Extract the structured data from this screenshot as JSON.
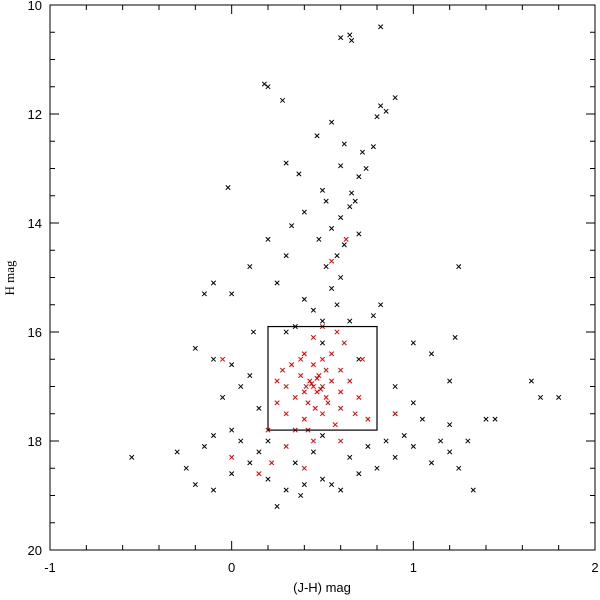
{
  "chart_data": {
    "type": "scatter",
    "xlabel": "(J-H) mag",
    "ylabel": "H mag",
    "xlim": [
      -1,
      2
    ],
    "ylim": [
      20,
      10
    ],
    "xticks": [
      -1,
      0,
      1,
      2
    ],
    "yticks": [
      10,
      12,
      14,
      16,
      18,
      20
    ],
    "xminorticks": [
      -0.8,
      -0.6,
      -0.4,
      -0.2,
      0.2,
      0.4,
      0.6,
      0.8,
      1.2,
      1.4,
      1.6,
      1.8
    ],
    "yminorticks": [
      10.5,
      11,
      11.5,
      12.5,
      13,
      13.5,
      14.5,
      15,
      15.5,
      16.5,
      17,
      17.5,
      18.5,
      19,
      19.5
    ],
    "box": {
      "x": [
        0.2,
        0.8
      ],
      "y": [
        15.9,
        17.8
      ],
      "color": "#000000"
    },
    "series": [
      {
        "color": "#000000",
        "x": [
          0.6,
          0.65,
          0.66,
          0.82,
          0.18,
          0.2,
          0.28,
          0.9,
          0.82,
          0.85,
          0.8,
          0.55,
          0.47,
          0.62,
          0.78,
          0.72,
          0.3,
          0.37,
          0.6,
          0.74,
          0.7,
          -0.02,
          0.5,
          0.66,
          0.52,
          0.68,
          0.4,
          0.6,
          0.65,
          0.55,
          0.7,
          0.33,
          0.48,
          0.62,
          0.58,
          0.52,
          0.6,
          0.55,
          0.2,
          0.3,
          0.1,
          0.25,
          0.4,
          0.45,
          0.5,
          0.58,
          0.35,
          0.65,
          0.0,
          -0.1,
          -0.15,
          0.82,
          0.78,
          1.0,
          1.1,
          1.23,
          1.2,
          1.65,
          1.7,
          1.8,
          1.4,
          1.45,
          1.2,
          1.0,
          0.9,
          -0.2,
          -0.1,
          0.0,
          0.1,
          0.05,
          -0.05,
          0.15,
          -0.55,
          -0.3,
          -0.25,
          -0.2,
          -0.1,
          0.0,
          0.1,
          0.2,
          0.3,
          0.4,
          0.5,
          0.6,
          0.7,
          0.8,
          0.9,
          1.0,
          1.1,
          1.2,
          1.3,
          1.33,
          0.25,
          0.38,
          0.55,
          -0.15,
          0.05,
          0.15,
          0.35,
          0.45,
          0.65,
          0.75,
          0.85,
          0.95,
          0.0,
          -0.1,
          0.2,
          0.5,
          1.05,
          1.15,
          1.25,
          0.3,
          0.5,
          0.7,
          0.9,
          0.12,
          1.25
        ],
        "values": [
          10.6,
          10.55,
          10.65,
          10.4,
          11.45,
          11.5,
          11.75,
          11.7,
          11.85,
          11.95,
          12.05,
          12.15,
          12.4,
          12.55,
          12.6,
          12.7,
          12.9,
          13.1,
          12.95,
          13.0,
          13.15,
          13.35,
          13.4,
          13.45,
          13.6,
          13.6,
          13.8,
          13.9,
          13.7,
          14.1,
          14.2,
          14.05,
          14.3,
          14.4,
          14.6,
          14.8,
          15.0,
          15.2,
          14.3,
          14.6,
          14.8,
          15.1,
          15.4,
          15.6,
          15.8,
          15.5,
          15.9,
          15.8,
          15.3,
          15.1,
          15.3,
          15.5,
          15.7,
          16.2,
          16.4,
          16.1,
          16.9,
          16.9,
          17.2,
          17.2,
          17.6,
          17.6,
          17.7,
          17.3,
          17.5,
          16.3,
          16.5,
          16.6,
          16.8,
          17.0,
          17.2,
          17.4,
          18.3,
          18.2,
          18.5,
          18.8,
          18.9,
          18.6,
          18.4,
          18.7,
          18.9,
          18.8,
          18.7,
          18.9,
          18.6,
          18.5,
          18.3,
          18.1,
          18.4,
          18.2,
          18.0,
          18.9,
          19.2,
          19.0,
          18.8,
          18.1,
          18.0,
          18.2,
          18.4,
          18.2,
          18.3,
          18.1,
          18.0,
          17.9,
          17.8,
          17.9,
          18.0,
          17.9,
          17.6,
          18.0,
          18.5,
          16.0,
          16.2,
          16.5,
          17.0,
          16.0,
          14.8
        ]
      },
      {
        "color": "#dd0000",
        "x": [
          0.45,
          0.47,
          0.43,
          0.5,
          0.4,
          0.48,
          0.42,
          0.52,
          0.38,
          0.55,
          0.35,
          0.6,
          0.3,
          0.45,
          0.5,
          0.55,
          0.4,
          0.6,
          0.65,
          0.7,
          0.3,
          0.4,
          0.5,
          0.6,
          0.35,
          0.25,
          0.28,
          0.62,
          0.58,
          0.5,
          0.45,
          0.72,
          0.75,
          0.3,
          0.45,
          0.6,
          0.2,
          0.15,
          0.55,
          0.63,
          0.25,
          0.68,
          0.38,
          0.52,
          0.46,
          0.33,
          0.57,
          0.42,
          0.9,
          0.0,
          -0.05,
          0.22,
          0.4,
          0.53,
          0.44,
          0.49,
          0.41,
          0.47
        ],
        "values": [
          17.0,
          17.1,
          16.9,
          17.0,
          17.1,
          16.8,
          17.3,
          17.2,
          16.8,
          16.9,
          17.2,
          17.1,
          17.0,
          16.6,
          16.5,
          16.4,
          16.4,
          16.7,
          16.9,
          17.2,
          17.5,
          17.6,
          17.5,
          17.4,
          17.8,
          17.3,
          16.7,
          16.2,
          16.0,
          15.9,
          16.1,
          16.5,
          17.6,
          18.1,
          18.0,
          18.0,
          17.8,
          18.6,
          14.7,
          14.3,
          16.9,
          17.5,
          16.5,
          16.7,
          17.4,
          16.6,
          17.7,
          17.8,
          17.5,
          18.3,
          16.5,
          18.4,
          18.5,
          17.3,
          16.95,
          17.05,
          17.0,
          16.85
        ]
      }
    ]
  }
}
